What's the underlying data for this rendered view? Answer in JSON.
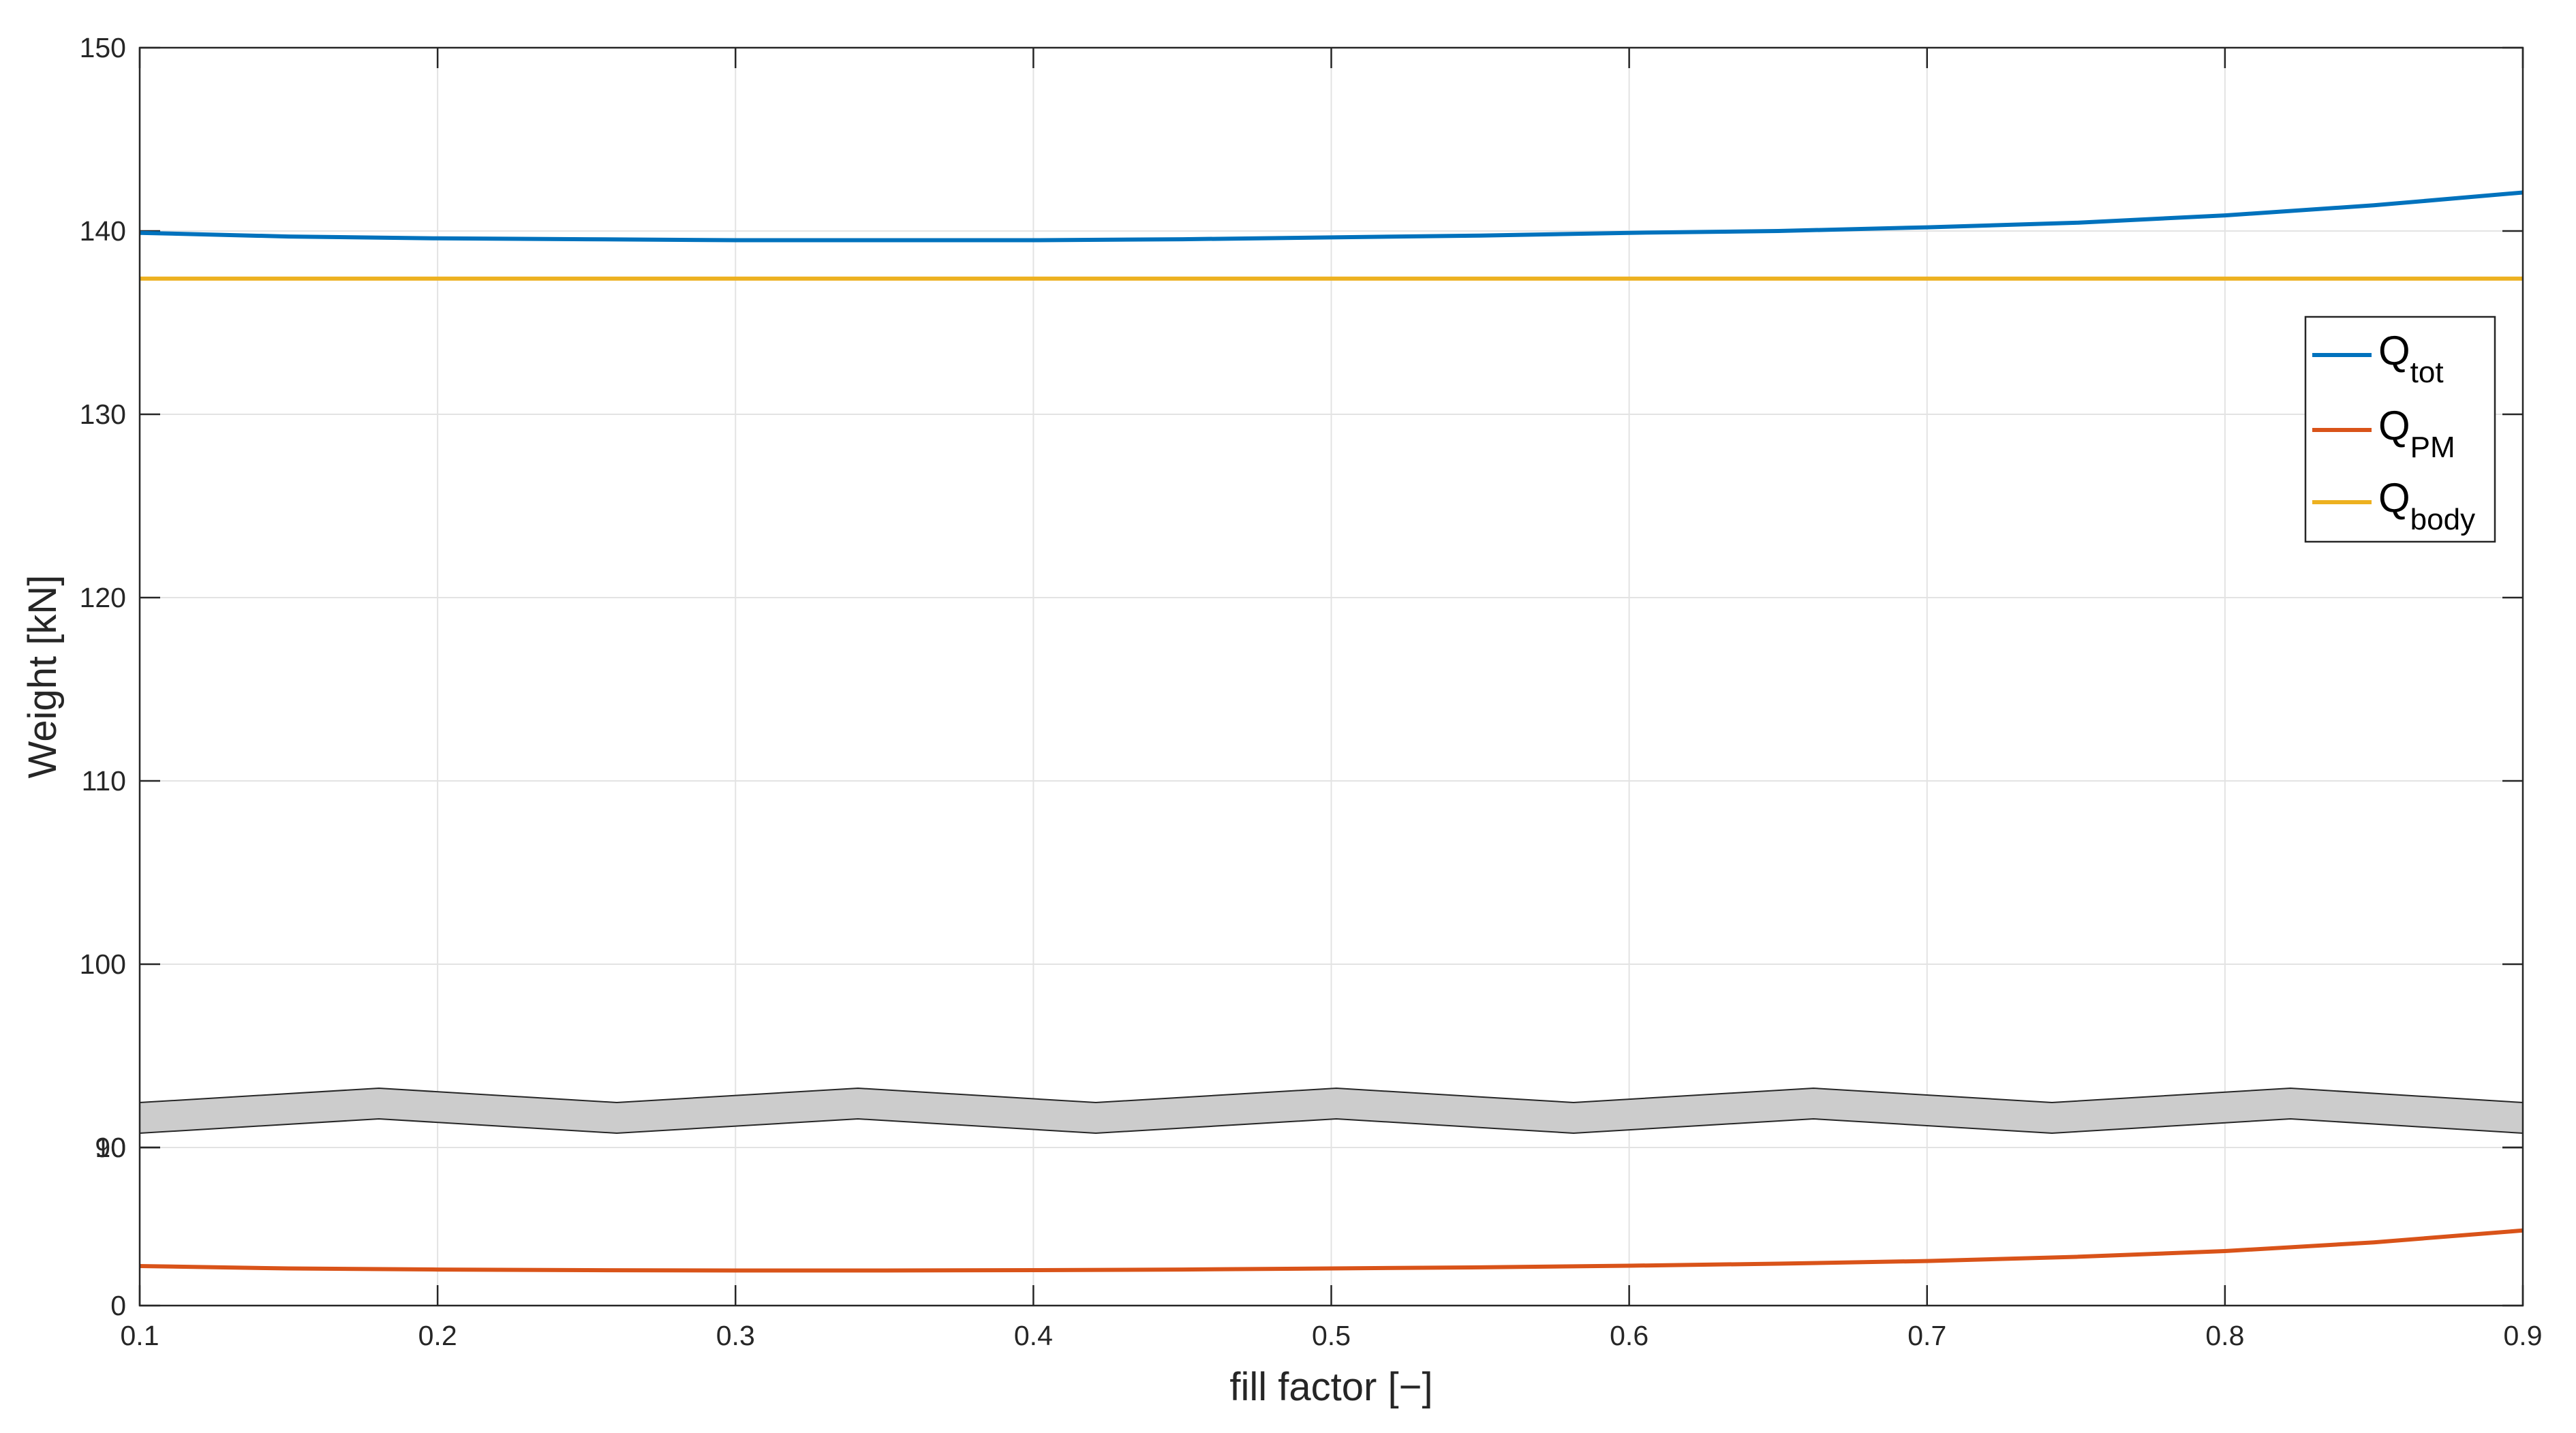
{
  "chart_data": {
    "type": "line",
    "xlabel": "fill factor [−]",
    "ylabel": "Weight [kN]",
    "xlim": [
      0.1,
      0.9
    ],
    "x_ticks": [
      "0.1",
      "0.2",
      "0.3",
      "0.4",
      "0.5",
      "0.6",
      "0.7",
      "0.8",
      "0.9"
    ],
    "y_ticks": [
      "0",
      "10",
      "90",
      "100",
      "110",
      "120",
      "130",
      "140",
      "150"
    ],
    "y_axis_break": {
      "lower": 10,
      "upper": 90
    },
    "grid": true,
    "legend_position": "upper-right",
    "x": [
      0.1,
      0.15,
      0.2,
      0.25,
      0.3,
      0.35,
      0.4,
      0.45,
      0.5,
      0.55,
      0.6,
      0.65,
      0.7,
      0.75,
      0.8,
      0.85,
      0.9
    ],
    "series": [
      {
        "name": "Q",
        "name_sub": "tot",
        "color": "#0072BD",
        "values": [
          139.9,
          139.7,
          139.6,
          139.55,
          139.5,
          139.5,
          139.5,
          139.55,
          139.65,
          139.75,
          139.9,
          140.0,
          140.2,
          140.45,
          140.85,
          141.4,
          142.1
        ]
      },
      {
        "name": "Q",
        "name_sub": "PM",
        "color": "#D95319",
        "values": [
          2.5,
          2.35,
          2.28,
          2.24,
          2.22,
          2.22,
          2.24,
          2.28,
          2.35,
          2.42,
          2.52,
          2.65,
          2.82,
          3.08,
          3.45,
          4.0,
          4.75
        ]
      },
      {
        "name": "Q",
        "name_sub": "body",
        "color": "#EDB120",
        "values": [
          137.4,
          137.4,
          137.4,
          137.4,
          137.4,
          137.4,
          137.4,
          137.4,
          137.4,
          137.4,
          137.4,
          137.4,
          137.4,
          137.4,
          137.4,
          137.4,
          137.4
        ]
      }
    ]
  }
}
